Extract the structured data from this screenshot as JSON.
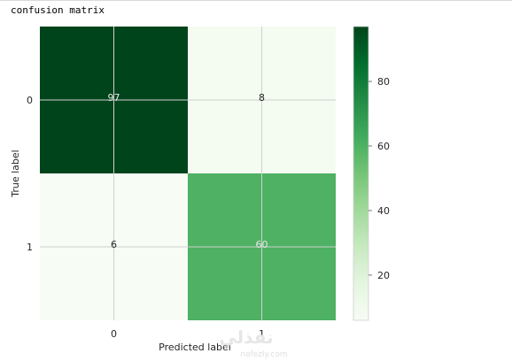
{
  "console": {
    "output_text": "confusion matrix"
  },
  "chart_data": {
    "type": "heatmap",
    "title": "",
    "xlabel": "Predicted label",
    "ylabel": "True label",
    "x_categories": [
      "0",
      "1"
    ],
    "y_categories": [
      "0",
      "1"
    ],
    "matrix": [
      [
        97,
        8
      ],
      [
        6,
        60
      ]
    ],
    "colormap": "Greens",
    "colors": {
      "low": "#f7fcf5",
      "high": "#00441b",
      "grid": "#cfcfcf"
    },
    "colorbar": {
      "range": [
        6,
        97
      ],
      "ticks": [
        20,
        40,
        60,
        80
      ]
    },
    "grid": true
  },
  "watermark": {
    "text": "نفذلي",
    "subtext": "nafezly.com"
  }
}
